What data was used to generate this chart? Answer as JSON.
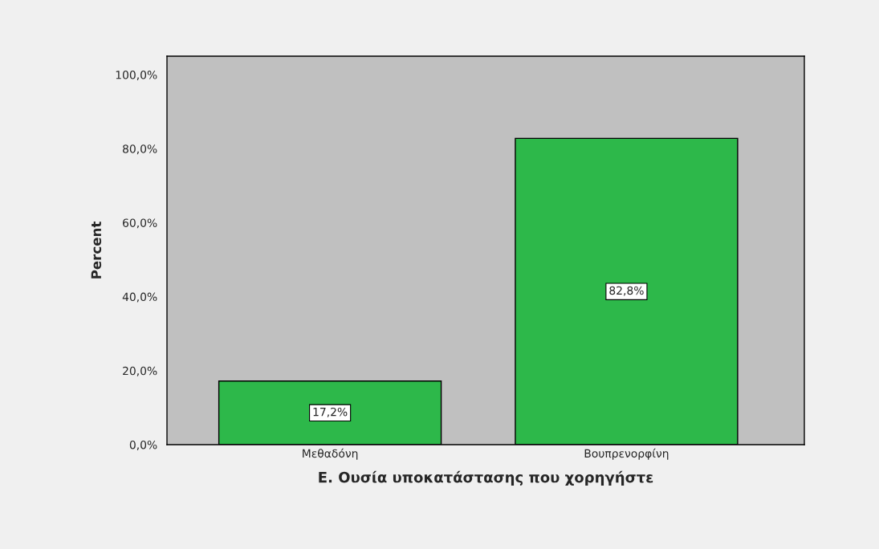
{
  "chart_data": {
    "type": "bar",
    "xlabel": "Ε. Ουσία υποκατάστασης που χορηγήστε",
    "ylabel": "Percent",
    "categories": [
      "Μεθαδόνη",
      "Βουπρενορφίνη"
    ],
    "values": [
      17.2,
      82.8
    ],
    "value_labels": [
      "17,2%",
      "82,8%"
    ],
    "color": "#2db84a",
    "ylim": [
      0,
      105
    ],
    "yticks": [
      {
        "value": 0,
        "label": "0,0%"
      },
      {
        "value": 20,
        "label": "20,0%"
      },
      {
        "value": 40,
        "label": "40,0%"
      },
      {
        "value": 60,
        "label": "60,0%"
      },
      {
        "value": 80,
        "label": "80,0%"
      },
      {
        "value": 100,
        "label": "100,0%"
      }
    ],
    "grid": false,
    "legend": false
  }
}
